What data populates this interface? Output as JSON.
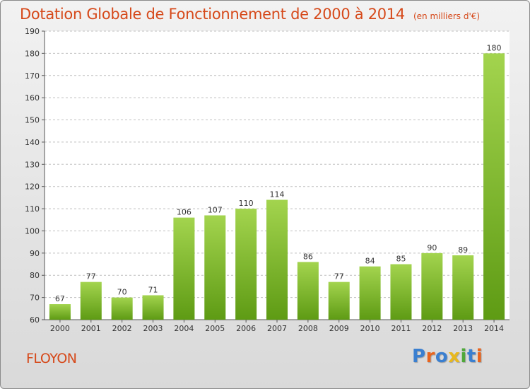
{
  "header": {
    "title": "Dotation Globale de Fonctionnement de 2000 à 2014",
    "subtitle": "(en milliers d'€)"
  },
  "commune": "FLOYON",
  "logo": {
    "text": "Proxiti",
    "letter_colors": [
      "#3a7fd0",
      "#e8641e",
      "#3a7fd0",
      "#e8b81e",
      "#4fa83a",
      "#3a7fd0",
      "#e8641e"
    ]
  },
  "colors": {
    "title": "#d6491a",
    "bar_top": "#a3d44e",
    "bar_bottom": "#5e9b14",
    "plot_bg": "#ffffff",
    "grid": "#bfbfbf"
  },
  "chart_data": {
    "type": "bar",
    "title": "Dotation Globale de Fonctionnement de 2000 à 2014",
    "subtitle": "(en milliers d'€)",
    "categories": [
      "2000",
      "2001",
      "2002",
      "2003",
      "2004",
      "2005",
      "2006",
      "2007",
      "2008",
      "2009",
      "2010",
      "2011",
      "2012",
      "2013",
      "2014"
    ],
    "values": [
      67,
      77,
      70,
      71,
      106,
      107,
      110,
      114,
      86,
      77,
      84,
      85,
      90,
      89,
      180
    ],
    "ylim": [
      60,
      190
    ],
    "yticks": [
      60,
      70,
      80,
      90,
      100,
      110,
      120,
      130,
      140,
      150,
      160,
      170,
      180,
      190
    ],
    "grid": "horizontal dashed",
    "legend": "none"
  }
}
